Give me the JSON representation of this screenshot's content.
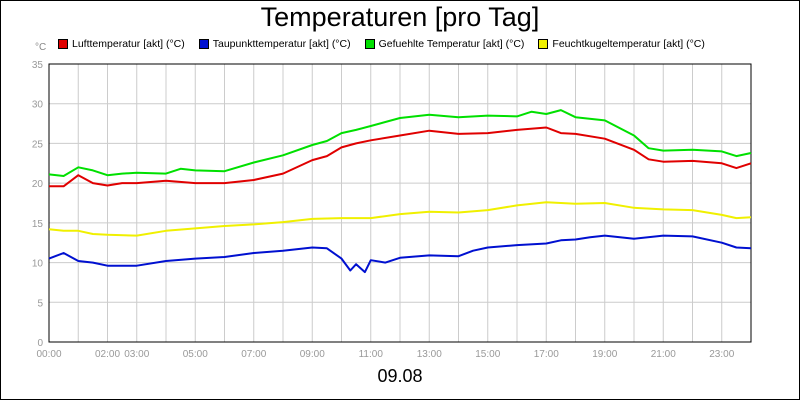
{
  "chart_data": {
    "type": "line",
    "title": "Temperaturen [pro Tag]",
    "date_label": "09.08",
    "ylabel": "°C",
    "ylim": [
      0,
      35
    ],
    "yticks": [
      0,
      5,
      10,
      15,
      20,
      25,
      30,
      35
    ],
    "xlim": [
      0,
      24
    ],
    "xticks": [
      {
        "hour": 0,
        "label": "00:00"
      },
      {
        "hour": 2,
        "label": "02:00"
      },
      {
        "hour": 3,
        "label": "03:00"
      },
      {
        "hour": 5,
        "label": "05:00"
      },
      {
        "hour": 7,
        "label": "07:00"
      },
      {
        "hour": 9,
        "label": "09:00"
      },
      {
        "hour": 11,
        "label": "11:00"
      },
      {
        "hour": 13,
        "label": "13:00"
      },
      {
        "hour": 15,
        "label": "15:00"
      },
      {
        "hour": 17,
        "label": "17:00"
      },
      {
        "hour": 19,
        "label": "19:00"
      },
      {
        "hour": 21,
        "label": "21:00"
      },
      {
        "hour": 23,
        "label": "23:00"
      }
    ],
    "grid": true,
    "legend_position": "top",
    "series": [
      {
        "name": "Lufttemperatur [akt] (°C)",
        "color": "#e00000",
        "x": [
          0,
          0.5,
          1,
          1.5,
          2,
          2.5,
          3,
          4,
          5,
          6,
          7,
          8,
          9,
          9.5,
          10,
          10.5,
          11,
          12,
          13,
          14,
          15,
          16,
          17,
          17.5,
          18,
          19,
          20,
          20.5,
          21,
          22,
          23,
          23.5,
          24
        ],
        "values": [
          19.6,
          19.6,
          21.0,
          20.0,
          19.7,
          20.0,
          20.0,
          20.3,
          20.0,
          20.0,
          20.4,
          21.2,
          22.9,
          23.4,
          24.5,
          25.0,
          25.4,
          26.0,
          26.6,
          26.2,
          26.3,
          26.7,
          27.0,
          26.3,
          26.2,
          25.6,
          24.2,
          23.0,
          22.7,
          22.8,
          22.5,
          21.9,
          22.5
        ]
      },
      {
        "name": "Taupunkttemperatur [akt] (°C)",
        "color": "#0010d0",
        "x": [
          0,
          0.5,
          1,
          1.5,
          2,
          3,
          4,
          5,
          6,
          7,
          8,
          9,
          9.5,
          10,
          10.3,
          10.5,
          10.8,
          11,
          11.5,
          12,
          13,
          14,
          14.5,
          15,
          16,
          17,
          17.5,
          18,
          18.5,
          19,
          20,
          21,
          22,
          23,
          23.5,
          24
        ],
        "values": [
          10.5,
          11.2,
          10.2,
          10.0,
          9.6,
          9.6,
          10.2,
          10.5,
          10.7,
          11.2,
          11.5,
          11.9,
          11.8,
          10.5,
          9.0,
          9.8,
          8.8,
          10.3,
          10.0,
          10.6,
          10.9,
          10.8,
          11.5,
          11.9,
          12.2,
          12.4,
          12.8,
          12.9,
          13.2,
          13.4,
          13.0,
          13.4,
          13.3,
          12.5,
          11.9,
          11.8
        ]
      },
      {
        "name": "Gefuehlte Temperatur [akt] (°C)",
        "color": "#00e000",
        "x": [
          0,
          0.5,
          1,
          1.5,
          2,
          2.5,
          3,
          4,
          4.5,
          5,
          6,
          7,
          8,
          9,
          9.5,
          10,
          10.5,
          11,
          12,
          13,
          14,
          15,
          16,
          16.5,
          17,
          17.5,
          18,
          19,
          20,
          20.5,
          21,
          22,
          23,
          23.5,
          24
        ],
        "values": [
          21.1,
          20.9,
          22.0,
          21.6,
          21.0,
          21.2,
          21.3,
          21.2,
          21.8,
          21.6,
          21.5,
          22.6,
          23.5,
          24.8,
          25.3,
          26.3,
          26.7,
          27.2,
          28.2,
          28.6,
          28.3,
          28.5,
          28.4,
          29.0,
          28.7,
          29.2,
          28.3,
          27.9,
          26.0,
          24.4,
          24.1,
          24.2,
          24.0,
          23.4,
          23.8
        ]
      },
      {
        "name": "Feuchtkugeltemperatur [akt] (°C)",
        "color": "#f0f000",
        "x": [
          0,
          0.5,
          1,
          1.5,
          2,
          3,
          4,
          5,
          6,
          7,
          8,
          9,
          10,
          11,
          12,
          13,
          14,
          15,
          16,
          17,
          18,
          19,
          20,
          21,
          22,
          23,
          23.5,
          24
        ],
        "values": [
          14.2,
          14.0,
          14.0,
          13.6,
          13.5,
          13.4,
          14.0,
          14.3,
          14.6,
          14.8,
          15.1,
          15.5,
          15.6,
          15.6,
          16.1,
          16.4,
          16.3,
          16.6,
          17.2,
          17.6,
          17.4,
          17.5,
          16.9,
          16.7,
          16.6,
          16.0,
          15.6,
          15.7
        ]
      }
    ]
  }
}
